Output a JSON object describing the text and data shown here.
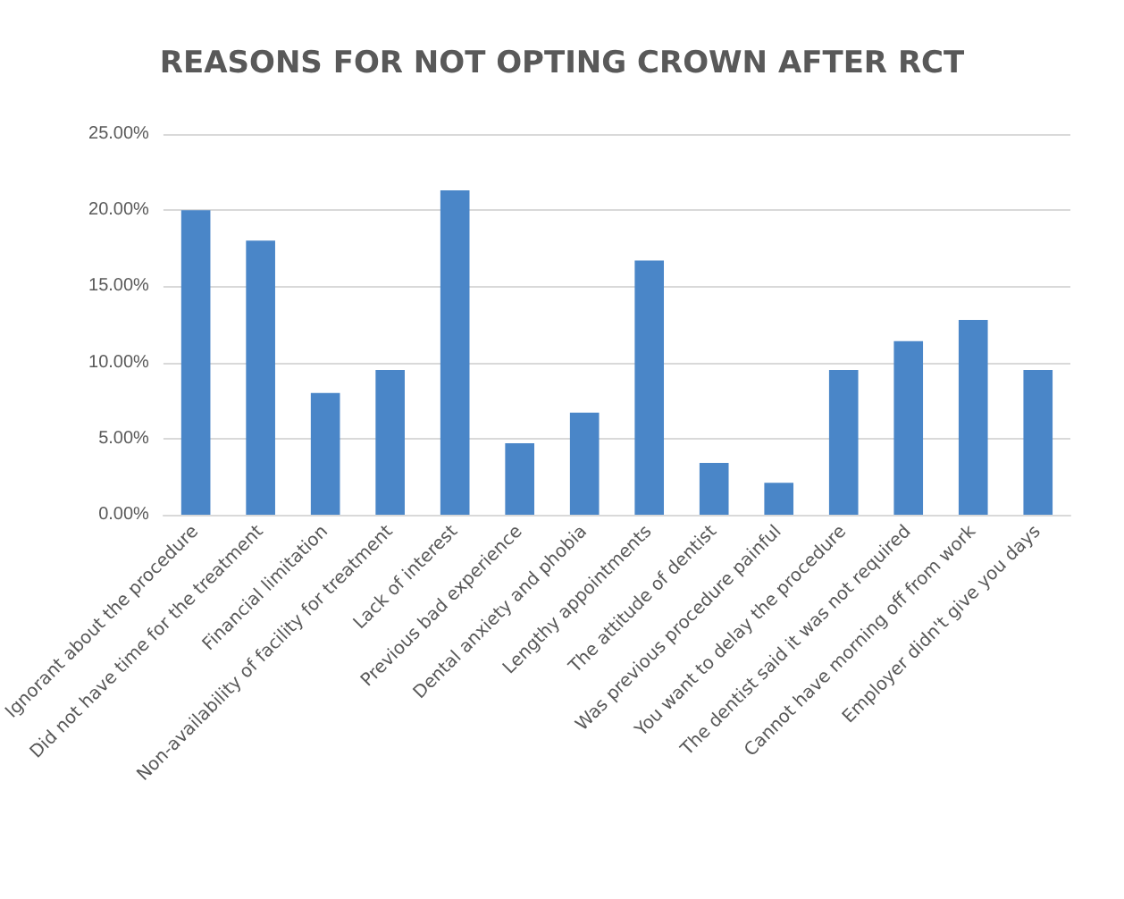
{
  "chart_data": {
    "type": "bar",
    "title": "REASONS FOR NOT OPTING CROWN AFTER RCT",
    "categories": [
      "Ignorant about the procedure",
      "Did not have time for the treatment",
      "Financial limitation",
      "Non-availability of facility for treatment",
      "Lack of interest",
      "Previous bad experience",
      "Dental anxiety and phobia",
      "Lengthy appointments",
      "The attitude of dentist",
      "Was previous procedure painful",
      "You want to delay the procedure",
      "The dentist said it was not required",
      "Cannot have morning off from work",
      "Employer didn't give you days"
    ],
    "values": [
      20.0,
      18.0,
      8.0,
      9.5,
      21.3,
      4.7,
      6.7,
      16.7,
      3.4,
      2.1,
      9.5,
      11.4,
      12.8,
      9.5
    ],
    "color": "#4a86c8",
    "ylim": [
      0,
      25
    ],
    "yticks": [
      {
        "value": 0,
        "label": "0.00%"
      },
      {
        "value": 5,
        "label": "5.00%"
      },
      {
        "value": 10,
        "label": "10.00%"
      },
      {
        "value": 15,
        "label": "15.00%"
      },
      {
        "value": 20,
        "label": "20.00%"
      },
      {
        "value": 25,
        "label": "25.00%"
      }
    ],
    "grid": "y"
  }
}
